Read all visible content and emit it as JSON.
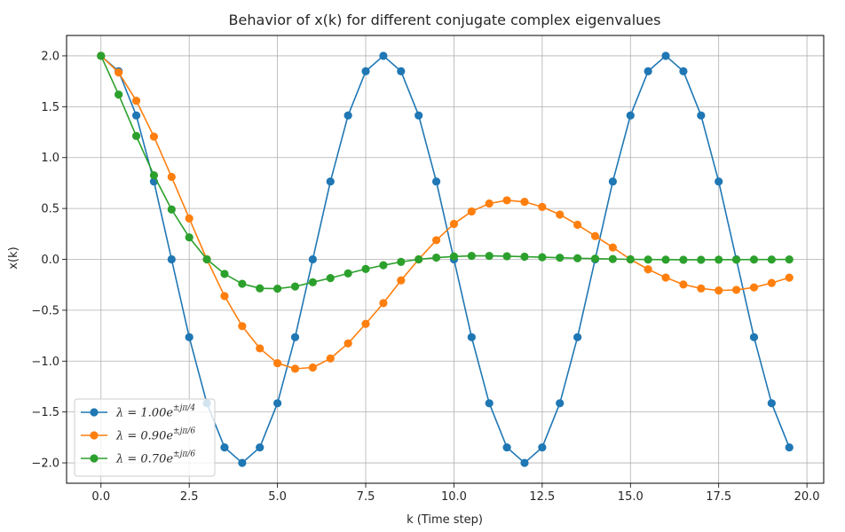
{
  "chart_data": {
    "type": "line",
    "title": "Behavior of x(k) for different conjugate complex eigenvalues",
    "xlabel": "k (Time step)",
    "ylabel": "x(k)",
    "xlim": [
      -0.975,
      20.475
    ],
    "ylim": [
      -2.2,
      2.2
    ],
    "xticks": [
      0.0,
      2.5,
      5.0,
      7.5,
      10.0,
      12.5,
      15.0,
      17.5,
      20.0
    ],
    "xtick_labels": [
      "0.0",
      "2.5",
      "5.0",
      "7.5",
      "10.0",
      "12.5",
      "15.0",
      "17.5",
      "20.0"
    ],
    "yticks": [
      -2.0,
      -1.5,
      -1.0,
      -0.5,
      0.0,
      0.5,
      1.0,
      1.5,
      2.0
    ],
    "ytick_labels": [
      "−2.0",
      "−1.5",
      "−1.0",
      "−0.5",
      "0.0",
      "0.5",
      "1.0",
      "1.5",
      "2.0"
    ],
    "grid": true,
    "legend_position": "lower-left",
    "x": [
      0.0,
      0.5,
      1.0,
      1.5,
      2.0,
      2.5,
      3.0,
      3.5,
      4.0,
      4.5,
      5.0,
      5.5,
      6.0,
      6.5,
      7.0,
      7.5,
      8.0,
      8.5,
      9.0,
      9.5,
      10.0,
      10.5,
      11.0,
      11.5,
      12.0,
      12.5,
      13.0,
      13.5,
      14.0,
      14.5,
      15.0,
      15.5,
      16.0,
      16.5,
      17.0,
      17.5,
      18.0,
      18.5,
      19.0,
      19.5
    ],
    "series": [
      {
        "name": "λ = 1.00e^{±jπ/4}",
        "legend": {
          "lhs": "λ = 1.00",
          "base": "e",
          "exp": "±jπ/4"
        },
        "color": "#1f77b4",
        "values": [
          2.0,
          1.848,
          1.414,
          0.765,
          0.0,
          -0.765,
          -1.414,
          -1.848,
          -2.0,
          -1.848,
          -1.414,
          -0.765,
          0.0,
          0.765,
          1.414,
          1.848,
          2.0,
          1.848,
          1.414,
          0.765,
          0.0,
          -0.765,
          -1.414,
          -1.848,
          -2.0,
          -1.848,
          -1.414,
          -0.765,
          0.0,
          0.765,
          1.414,
          1.848,
          2.0,
          1.848,
          1.414,
          0.765,
          0.0,
          -0.765,
          -1.414,
          -1.848
        ]
      },
      {
        "name": "λ = 0.90e^{±jπ/6}",
        "legend": {
          "lhs": "λ = 0.90",
          "base": "e",
          "exp": "±jπ/6"
        },
        "color": "#ff7f0e",
        "values": [
          2.0,
          1.836,
          1.559,
          1.206,
          0.81,
          0.402,
          0.0,
          -0.361,
          -0.656,
          -0.875,
          -1.02,
          -1.075,
          -1.063,
          -0.974,
          -0.826,
          -0.634,
          -0.43,
          -0.207,
          0.0,
          0.188,
          0.349,
          0.471,
          0.549,
          0.58,
          0.565,
          0.515,
          0.44,
          0.34,
          0.229,
          0.117,
          0.0,
          -0.098,
          -0.179,
          -0.247,
          -0.286,
          -0.306,
          -0.3,
          -0.276,
          -0.232,
          -0.18
        ]
      },
      {
        "name": "λ = 0.70e^{±jπ/6}",
        "legend": {
          "lhs": "λ = 0.70",
          "base": "e",
          "exp": "±jπ/6"
        },
        "color": "#2ca02c",
        "values": [
          2.0,
          1.619,
          1.212,
          0.826,
          0.49,
          0.216,
          0.0,
          -0.143,
          -0.24,
          -0.285,
          -0.288,
          -0.267,
          -0.225,
          -0.184,
          -0.138,
          -0.095,
          -0.058,
          -0.025,
          0.0,
          0.017,
          0.028,
          0.034,
          0.034,
          0.031,
          0.026,
          0.021,
          0.016,
          0.011,
          0.007,
          0.003,
          0.0,
          -0.002,
          -0.003,
          -0.004,
          -0.004,
          -0.003,
          -0.003,
          -0.002,
          -0.002,
          -0.001
        ]
      }
    ]
  }
}
